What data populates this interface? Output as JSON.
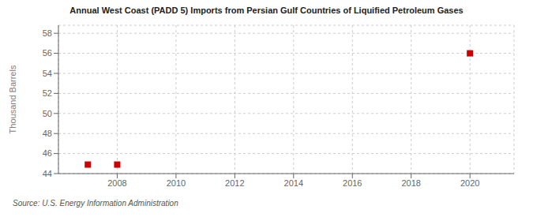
{
  "chart_data": {
    "type": "scatter",
    "title": "Annual West Coast (PADD 5) Imports from Persian Gulf Countries of Liquified Petroleum Gases",
    "ylabel": "Thousand Barrels",
    "source": "Source: U.S. Energy Information Administration",
    "x": [
      2007,
      2008,
      2020
    ],
    "values": [
      44.9,
      44.9,
      56.0
    ],
    "color": "#cc0000",
    "marker": "square",
    "xlim": [
      2006.0,
      2021.5
    ],
    "ylim": [
      44.0,
      58.8
    ],
    "xticks": [
      2008,
      2010,
      2012,
      2014,
      2016,
      2018,
      2020
    ],
    "yticks": [
      44,
      46,
      48,
      50,
      52,
      54,
      56,
      58
    ],
    "grid": true
  }
}
